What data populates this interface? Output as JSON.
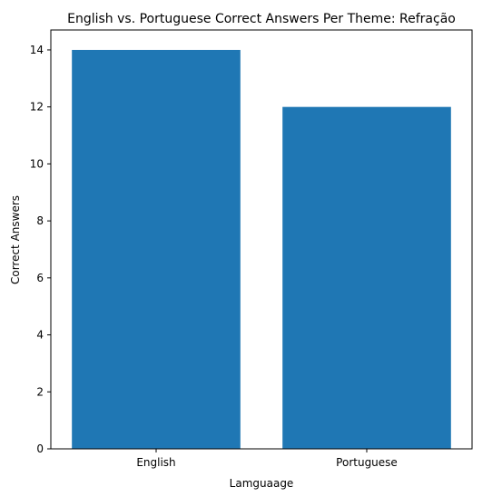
{
  "chart_data": {
    "type": "bar",
    "title": "English vs. Portuguese Correct Answers Per Theme: Refração",
    "xlabel": "Lamguaage",
    "ylabel": "Correct Answers",
    "categories": [
      "English",
      "Portuguese"
    ],
    "values": [
      14,
      12
    ],
    "ylim": [
      0,
      14.7
    ],
    "yticks": [
      0,
      2,
      4,
      6,
      8,
      10,
      12,
      14
    ],
    "grid": false,
    "bar_color": "#1f77b4"
  }
}
